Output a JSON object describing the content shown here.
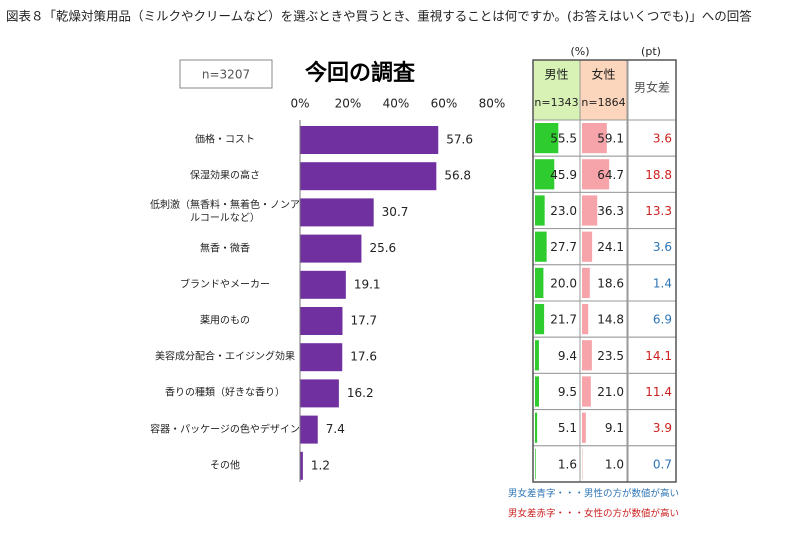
{
  "chart_data": {
    "type": "bar",
    "orientation": "horizontal",
    "title": "図表８「乾燥対策用品（ミルクやクリームなど）を選ぶときや買うとき、重視することは何ですか。(お答えはいくつでも)」への回答",
    "sample_label": "n=3207",
    "subtitle": "今回の調査",
    "categories": [
      "価格・コスト",
      "保湿効果の高さ",
      "低刺激（無香料・無着色・ノンアルコールなど）",
      "無香・微香",
      "ブランドやメーカー",
      "薬用のもの",
      "美容成分配合・エイジング効果",
      "香りの種類（好きな香り）",
      "容器・パッケージの色やデザイン",
      "その他"
    ],
    "values": [
      57.6,
      56.8,
      30.7,
      25.6,
      19.1,
      17.7,
      17.6,
      16.2,
      7.4,
      1.2
    ],
    "color": "#7030a0",
    "xlim": [
      0,
      80
    ],
    "xticks": [
      {
        "value": 0,
        "label": "0%"
      },
      {
        "value": 20,
        "label": "20%"
      },
      {
        "value": 40,
        "label": "40%"
      },
      {
        "value": 60,
        "label": "60%"
      },
      {
        "value": 80,
        "label": "80%"
      }
    ]
  },
  "table": {
    "unit_percent": "(%)",
    "unit_pt": "(pt)",
    "columns": [
      {
        "name": "男性",
        "n": "n=1343",
        "color": "#2ecc2e",
        "header_color": "#d8f2b6",
        "values": [
          55.5,
          45.9,
          23.0,
          27.7,
          20.0,
          21.7,
          9.4,
          9.5,
          5.1,
          1.6
        ],
        "value_labels": [
          "55.5",
          "45.9",
          "23.0",
          "27.7",
          "20.0",
          "21.7",
          "9.4",
          "9.5",
          "5.1",
          "1.6"
        ]
      },
      {
        "name": "女性",
        "n": "n=1864",
        "color": "#f7a3aa",
        "header_color": "#fbd5bc",
        "values": [
          59.1,
          64.7,
          36.3,
          24.1,
          18.6,
          14.8,
          23.5,
          21.0,
          9.1,
          1.0
        ],
        "value_labels": [
          "59.1",
          "64.7",
          "36.3",
          "24.1",
          "18.6",
          "14.8",
          "23.5",
          "21.0",
          "9.1",
          "1.0"
        ]
      }
    ],
    "diff": {
      "name": "男女差",
      "values": [
        3.6,
        18.8,
        13.3,
        3.6,
        1.4,
        6.9,
        14.1,
        11.4,
        3.9,
        0.7
      ],
      "colors": [
        "#cc1f1f",
        "#cc1f1f",
        "#cc1f1f",
        "#2e75b6",
        "#2e75b6",
        "#2e75b6",
        "#cc1f1f",
        "#cc1f1f",
        "#cc1f1f",
        "#2e75b6"
      ]
    },
    "notes": [
      {
        "text": "男女差青字・・・男性の方が数値が高い",
        "color": "#2e75b6"
      },
      {
        "text": "男女差赤字・・・女性の方が数値が高い",
        "color": "#cc1f1f"
      }
    ]
  }
}
